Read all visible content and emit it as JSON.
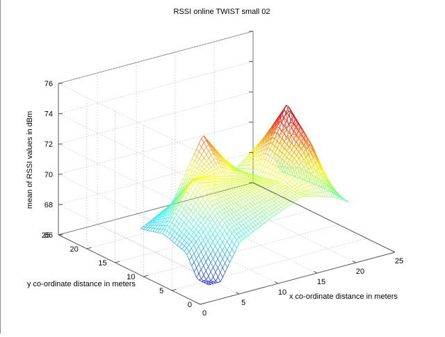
{
  "chart_data": {
    "type": "surface",
    "title": "RSSI online TWIST small 02",
    "xlabel": "x co-ordinate distance in meters",
    "ylabel": "y co-ordinate distance in meters",
    "zlabel": "mean of RSSI values in dBm",
    "xlim": [
      0,
      25
    ],
    "ylim": [
      0,
      25
    ],
    "zlim": [
      66,
      76
    ],
    "x_ticks": [
      "0",
      "5",
      "10",
      "15",
      "20",
      "25"
    ],
    "y_ticks": [
      "0",
      "5",
      "10",
      "15",
      "20",
      "25"
    ],
    "z_ticks": [
      "66",
      "68",
      "70",
      "72",
      "74",
      "76"
    ],
    "grid": true,
    "colormap": "jet",
    "surface_x": [
      4,
      8,
      12,
      16,
      20,
      22
    ],
    "surface_y": [
      4,
      8,
      12,
      16
    ],
    "surface_z": [
      [
        64.6,
        68.3,
        69.3,
        70.2,
        69.6,
        69.0
      ],
      [
        67.4,
        69.6,
        70.1,
        70.4,
        72.6,
        69.1
      ],
      [
        67.9,
        71.1,
        70.5,
        70.1,
        74.4,
        69.0
      ],
      [
        67.5,
        68.6,
        72.6,
        69.7,
        71.4,
        68.8
      ]
    ]
  }
}
